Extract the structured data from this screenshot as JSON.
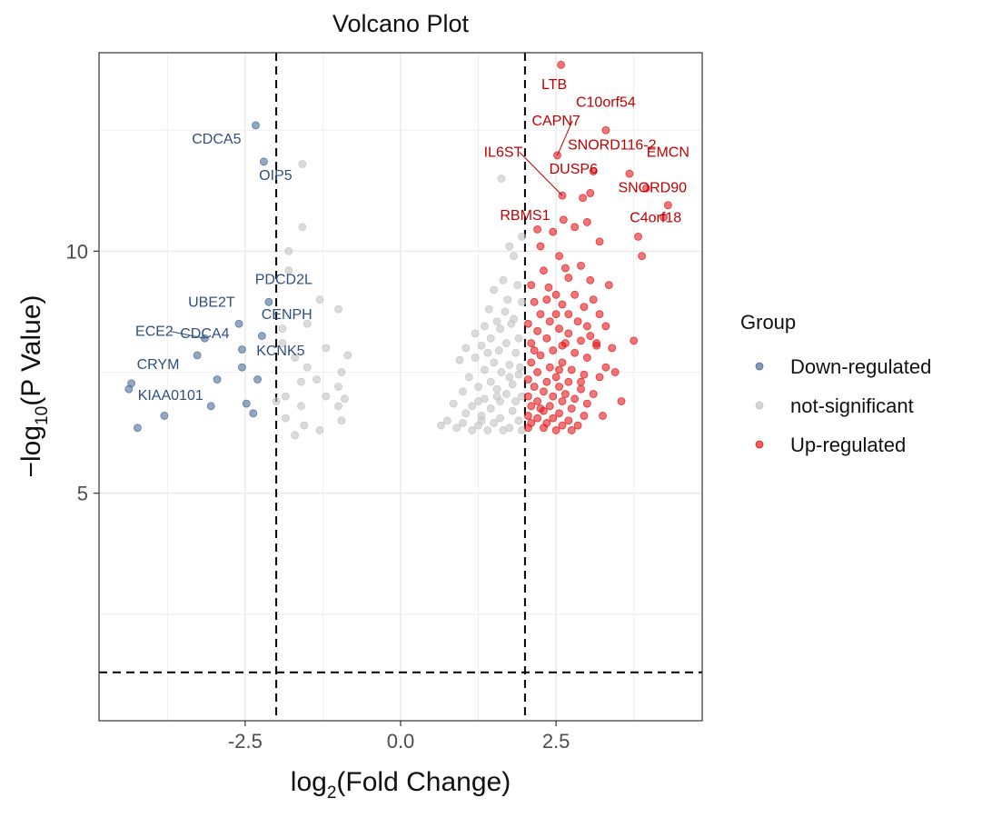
{
  "chart_data": {
    "type": "scatter",
    "title": "Volcano Plot",
    "xlabel": {
      "pre": "log",
      "sub": "2",
      "post": "(Fold Change)"
    },
    "ylabel": {
      "pre": "−log",
      "sub": "10",
      "post": "(P Value)"
    },
    "xlim": [
      -4.85,
      4.85
    ],
    "ylim": [
      0.3,
      14.1
    ],
    "x_ticks": [
      {
        "value": -2.5,
        "label": "-2.5"
      },
      {
        "value": 0.0,
        "label": "0.0"
      },
      {
        "value": 2.5,
        "label": "2.5"
      }
    ],
    "y_ticks": [
      {
        "value": 5,
        "label": "5"
      },
      {
        "value": 10,
        "label": "10"
      }
    ],
    "grid": true,
    "thresholds": {
      "fold_change": [
        -2,
        2
      ],
      "pvalue": 1.3
    },
    "legend": {
      "title": "Group",
      "position": "right",
      "items": [
        {
          "name": "Down-regulated",
          "color": "#4a6d98"
        },
        {
          "name": "not-significant",
          "color": "#c3c3c3"
        },
        {
          "name": "Up-regulated",
          "color": "#e41a1c"
        }
      ]
    },
    "series": [
      {
        "name": "Down-regulated",
        "color": "#4a6d98",
        "points": [
          [
            -2.33,
            12.6
          ],
          [
            -2.2,
            11.85
          ],
          [
            -2.12,
            8.95
          ],
          [
            -2.6,
            8.5
          ],
          [
            -2.23,
            8.25
          ],
          [
            -3.15,
            8.2
          ],
          [
            -2.55,
            7.97
          ],
          [
            -3.27,
            7.85
          ],
          [
            -2.55,
            7.6
          ],
          [
            -2.3,
            7.35
          ],
          [
            -2.95,
            7.35
          ],
          [
            -4.33,
            7.27
          ],
          [
            -4.37,
            7.15
          ],
          [
            -3.05,
            6.8
          ],
          [
            -2.48,
            6.85
          ],
          [
            -2.37,
            6.65
          ],
          [
            -3.8,
            6.6
          ],
          [
            -4.23,
            6.35
          ]
        ]
      },
      {
        "name": "not-significant",
        "color": "#c3c3c3",
        "points": [
          [
            -1.58,
            11.8
          ],
          [
            -1.58,
            10.5
          ],
          [
            -1.8,
            10.0
          ],
          [
            -1.8,
            9.6
          ],
          [
            -1.3,
            9.0
          ],
          [
            -1.0,
            8.8
          ],
          [
            -1.5,
            8.5
          ],
          [
            -1.9,
            8.4
          ],
          [
            -1.9,
            8.1
          ],
          [
            -1.7,
            7.8
          ],
          [
            -1.2,
            8.0
          ],
          [
            -0.85,
            7.85
          ],
          [
            -1.5,
            7.6
          ],
          [
            -0.95,
            7.5
          ],
          [
            -1.6,
            7.3
          ],
          [
            -1.35,
            7.35
          ],
          [
            -1.0,
            7.2
          ],
          [
            -1.85,
            7.0
          ],
          [
            -1.2,
            7.0
          ],
          [
            -0.9,
            6.95
          ],
          [
            -1.6,
            6.8
          ],
          [
            -1.0,
            6.8
          ],
          [
            -1.85,
            6.55
          ],
          [
            -1.55,
            6.4
          ],
          [
            -1.3,
            6.3
          ],
          [
            -0.95,
            6.5
          ],
          [
            -2.0,
            6.9
          ],
          [
            -1.7,
            6.2
          ],
          [
            1.62,
            11.5
          ],
          [
            1.95,
            10.3
          ],
          [
            1.75,
            10.1
          ],
          [
            1.82,
            9.9
          ],
          [
            1.65,
            9.4
          ],
          [
            1.88,
            9.3
          ],
          [
            1.5,
            9.2
          ],
          [
            1.72,
            9.0
          ],
          [
            1.95,
            8.95
          ],
          [
            1.42,
            8.8
          ],
          [
            1.55,
            8.55
          ],
          [
            1.78,
            8.5
          ],
          [
            1.35,
            8.45
          ],
          [
            1.6,
            8.4
          ],
          [
            1.9,
            8.2
          ],
          [
            1.2,
            8.3
          ],
          [
            1.45,
            8.2
          ],
          [
            1.7,
            8.1
          ],
          [
            1.05,
            8.0
          ],
          [
            1.3,
            8.05
          ],
          [
            1.58,
            7.95
          ],
          [
            1.85,
            7.9
          ],
          [
            0.95,
            7.75
          ],
          [
            1.2,
            7.8
          ],
          [
            1.5,
            7.7
          ],
          [
            1.75,
            7.65
          ],
          [
            1.35,
            7.55
          ],
          [
            1.62,
            7.5
          ],
          [
            1.9,
            7.45
          ],
          [
            1.1,
            7.4
          ],
          [
            1.45,
            7.3
          ],
          [
            1.8,
            7.25
          ],
          [
            1.25,
            7.2
          ],
          [
            1.55,
            7.15
          ],
          [
            1.0,
            7.1
          ],
          [
            1.7,
            7.05
          ],
          [
            1.95,
            7.0
          ],
          [
            1.35,
            6.95
          ],
          [
            1.6,
            6.9
          ],
          [
            0.85,
            6.85
          ],
          [
            1.15,
            6.8
          ],
          [
            1.45,
            6.75
          ],
          [
            1.8,
            6.7
          ],
          [
            1.05,
            6.65
          ],
          [
            1.3,
            6.6
          ],
          [
            1.6,
            6.55
          ],
          [
            1.9,
            6.5
          ],
          [
            0.75,
            6.5
          ],
          [
            1.0,
            6.45
          ],
          [
            1.25,
            6.4
          ],
          [
            1.5,
            6.45
          ],
          [
            1.75,
            6.35
          ],
          [
            0.65,
            6.4
          ],
          [
            0.9,
            6.35
          ],
          [
            1.15,
            6.3
          ],
          [
            1.4,
            6.3
          ],
          [
            1.65,
            6.3
          ],
          [
            1.95,
            6.3
          ],
          [
            1.55,
            7.0
          ],
          [
            1.85,
            6.9
          ],
          [
            1.25,
            6.9
          ],
          [
            1.75,
            7.4
          ],
          [
            1.68,
            8.75
          ],
          [
            1.82,
            8.6
          ],
          [
            1.4,
            7.9
          ],
          [
            1.92,
            7.6
          ],
          [
            1.3,
            6.5
          ]
        ]
      },
      {
        "name": "Up-regulated",
        "color": "#e41a1c",
        "points": [
          [
            2.58,
            13.85
          ],
          [
            3.3,
            12.5
          ],
          [
            2.52,
            11.98
          ],
          [
            3.1,
            11.65
          ],
          [
            3.68,
            11.6
          ],
          [
            2.6,
            11.15
          ],
          [
            3.05,
            11.2
          ],
          [
            3.95,
            11.3
          ],
          [
            2.93,
            11.1
          ],
          [
            4.3,
            10.95
          ],
          [
            2.62,
            10.65
          ],
          [
            4.23,
            10.7
          ],
          [
            3.0,
            10.6
          ],
          [
            2.8,
            10.5
          ],
          [
            2.2,
            10.45
          ],
          [
            2.45,
            10.4
          ],
          [
            3.82,
            10.3
          ],
          [
            2.25,
            10.1
          ],
          [
            3.88,
            9.9
          ],
          [
            2.55,
            9.9
          ],
          [
            3.2,
            10.2
          ],
          [
            2.65,
            9.65
          ],
          [
            2.3,
            9.6
          ],
          [
            2.9,
            9.7
          ],
          [
            2.7,
            9.45
          ],
          [
            2.1,
            9.3
          ],
          [
            3.05,
            9.4
          ],
          [
            2.38,
            9.25
          ],
          [
            3.35,
            9.3
          ],
          [
            2.5,
            9.1
          ],
          [
            2.8,
            9.1
          ],
          [
            3.1,
            9.0
          ],
          [
            2.15,
            8.95
          ],
          [
            2.6,
            8.9
          ],
          [
            2.95,
            8.85
          ],
          [
            2.25,
            8.7
          ],
          [
            2.7,
            8.7
          ],
          [
            3.2,
            8.7
          ],
          [
            2.4,
            8.55
          ],
          [
            2.85,
            8.55
          ],
          [
            2.05,
            8.5
          ],
          [
            3.0,
            8.45
          ],
          [
            2.55,
            8.4
          ],
          [
            3.3,
            8.45
          ],
          [
            2.2,
            8.35
          ],
          [
            2.7,
            8.3
          ],
          [
            3.05,
            8.25
          ],
          [
            2.35,
            8.2
          ],
          [
            2.9,
            8.15
          ],
          [
            2.1,
            8.1
          ],
          [
            2.6,
            8.05
          ],
          [
            3.15,
            8.05
          ],
          [
            3.75,
            8.15
          ],
          [
            2.45,
            7.95
          ],
          [
            2.8,
            7.9
          ],
          [
            2.25,
            7.85
          ],
          [
            3.0,
            7.8
          ],
          [
            2.6,
            7.7
          ],
          [
            2.1,
            7.7
          ],
          [
            3.3,
            7.6
          ],
          [
            2.4,
            7.6
          ],
          [
            2.75,
            7.55
          ],
          [
            2.2,
            7.5
          ],
          [
            2.95,
            7.45
          ],
          [
            2.5,
            7.4
          ],
          [
            3.2,
            7.4
          ],
          [
            2.05,
            7.35
          ],
          [
            2.35,
            7.3
          ],
          [
            2.7,
            7.3
          ],
          [
            3.45,
            7.5
          ],
          [
            2.15,
            7.2
          ],
          [
            2.55,
            7.2
          ],
          [
            2.9,
            7.15
          ],
          [
            2.3,
            7.1
          ],
          [
            2.65,
            7.05
          ],
          [
            3.1,
            7.05
          ],
          [
            2.05,
            7.0
          ],
          [
            2.45,
            7.0
          ],
          [
            2.8,
            6.95
          ],
          [
            2.2,
            6.9
          ],
          [
            2.6,
            6.9
          ],
          [
            3.0,
            6.85
          ],
          [
            2.1,
            6.8
          ],
          [
            2.4,
            6.8
          ],
          [
            2.75,
            6.75
          ],
          [
            2.3,
            6.7
          ],
          [
            2.55,
            6.65
          ],
          [
            2.95,
            6.6
          ],
          [
            2.05,
            6.6
          ],
          [
            2.2,
            6.55
          ],
          [
            2.45,
            6.55
          ],
          [
            2.7,
            6.5
          ],
          [
            2.1,
            6.45
          ],
          [
            2.35,
            6.45
          ],
          [
            2.6,
            6.4
          ],
          [
            2.85,
            6.4
          ],
          [
            2.05,
            6.35
          ],
          [
            2.3,
            6.35
          ],
          [
            2.5,
            6.3
          ],
          [
            2.75,
            6.3
          ],
          [
            3.55,
            6.9
          ],
          [
            2.15,
            7.95
          ],
          [
            2.9,
            7.3
          ],
          [
            2.5,
            8.7
          ],
          [
            3.15,
            8.1
          ],
          [
            2.35,
            9.0
          ],
          [
            2.65,
            8.1
          ],
          [
            2.25,
            6.75
          ],
          [
            3.4,
            8.0
          ],
          [
            2.55,
            7.55
          ],
          [
            3.25,
            6.6
          ]
        ]
      }
    ],
    "annotations": [
      {
        "label": "CDCA5",
        "x": -2.2,
        "y": 11.85,
        "tx": -2.96,
        "ty": 12.22,
        "group": "Down-regulated"
      },
      {
        "label": "OIP5",
        "x": -2.2,
        "y": 11.85,
        "tx": -2.01,
        "ty": 11.47,
        "group": "Down-regulated"
      },
      {
        "label": "PDCD2L",
        "x": -2.12,
        "y": 8.95,
        "tx": -1.88,
        "ty": 9.32,
        "group": "Down-regulated"
      },
      {
        "label": "UBE2T",
        "x": -2.6,
        "y": 8.5,
        "tx": -3.04,
        "ty": 8.85,
        "group": "Down-regulated"
      },
      {
        "label": "CENPH",
        "x": -2.23,
        "y": 8.25,
        "tx": -1.83,
        "ty": 8.6,
        "group": "Down-regulated"
      },
      {
        "label": "ECE2",
        "x": -3.15,
        "y": 8.2,
        "tx": -3.96,
        "ty": 8.25,
        "group": "Down-regulated",
        "leader": true
      },
      {
        "label": "CDCA4",
        "x": -2.55,
        "y": 7.97,
        "tx": -3.15,
        "ty": 8.2,
        "group": "Down-regulated"
      },
      {
        "label": "KCNK5",
        "x": -2.3,
        "y": 7.35,
        "tx": -1.93,
        "ty": 7.85,
        "group": "Down-regulated"
      },
      {
        "label": "CRYM",
        "x": -4.33,
        "y": 7.27,
        "tx": -3.9,
        "ty": 7.57,
        "group": "Down-regulated"
      },
      {
        "label": "KIAA0101",
        "x": -3.05,
        "y": 6.8,
        "tx": -3.7,
        "ty": 6.93,
        "group": "Down-regulated"
      },
      {
        "label": "LTB",
        "x": 2.58,
        "y": 13.85,
        "tx": 2.47,
        "ty": 13.35,
        "group": "Up-regulated"
      },
      {
        "label": "C10orf54",
        "x": 3.3,
        "y": 12.5,
        "tx": 3.3,
        "ty": 12.98,
        "group": "Up-regulated"
      },
      {
        "label": "CAPN7",
        "x": 2.52,
        "y": 11.98,
        "tx": 2.5,
        "ty": 12.6,
        "group": "Up-regulated",
        "leader": true
      },
      {
        "label": "SNORD116-2",
        "x": 3.68,
        "y": 11.6,
        "tx": 3.4,
        "ty": 12.1,
        "group": "Up-regulated"
      },
      {
        "label": "EMCN",
        "x": 4.3,
        "y": 10.95,
        "tx": 4.3,
        "ty": 11.95,
        "group": "Up-regulated"
      },
      {
        "label": "IL6ST",
        "x": 2.6,
        "y": 11.15,
        "tx": 1.65,
        "ty": 11.95,
        "group": "Up-regulated",
        "leader": true
      },
      {
        "label": "DUSP6",
        "x": 2.6,
        "y": 11.15,
        "tx": 2.78,
        "ty": 11.6,
        "group": "Up-regulated"
      },
      {
        "label": "SNORD90",
        "x": 4.23,
        "y": 10.7,
        "tx": 4.05,
        "ty": 11.22,
        "group": "Up-regulated"
      },
      {
        "label": "RBMS1",
        "x": 2.2,
        "y": 10.45,
        "tx": 2.0,
        "ty": 10.65,
        "group": "Up-regulated"
      },
      {
        "label": "C4orf18",
        "x": 3.82,
        "y": 10.3,
        "tx": 4.1,
        "ty": 10.6,
        "group": "Up-regulated"
      }
    ]
  }
}
